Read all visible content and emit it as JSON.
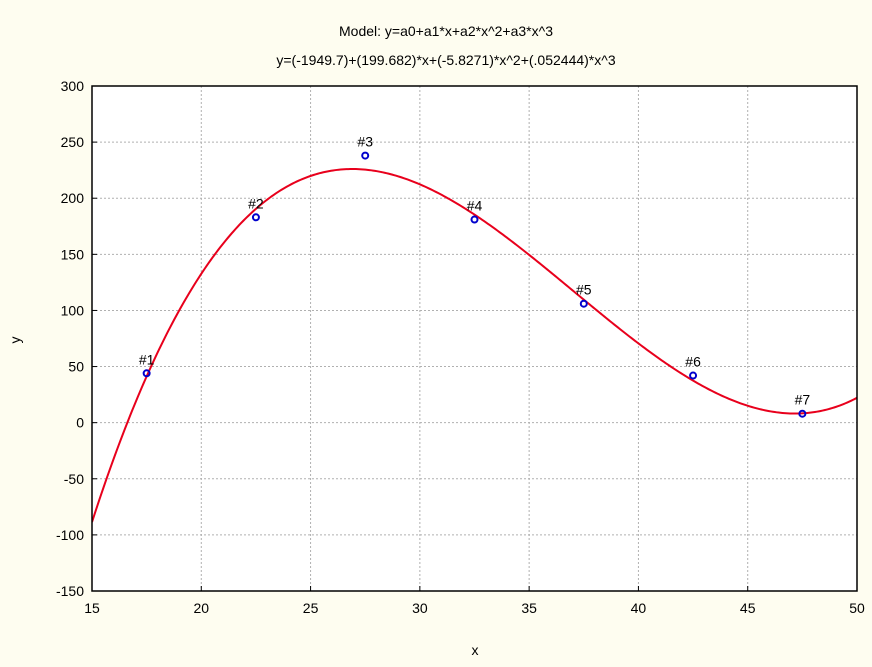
{
  "chart_data": {
    "type": "scatter",
    "title": "Model: y=a0+a1*x+a2*x^2+a3*x^3",
    "subtitle": "y=(-1949.7)+(199.682)*x+(-5.8271)*x^2+(.052444)*x^3",
    "xlabel": "x",
    "ylabel": "y",
    "xlim": [
      15,
      50
    ],
    "ylim": [
      -150,
      300
    ],
    "x_ticks": [
      15,
      20,
      25,
      30,
      35,
      40,
      45,
      50
    ],
    "y_ticks": [
      -150,
      -100,
      -50,
      0,
      50,
      100,
      150,
      200,
      250,
      300
    ],
    "grid": true,
    "points": [
      {
        "label": "#1",
        "x": 17.5,
        "y": 44
      },
      {
        "label": "#2",
        "x": 22.5,
        "y": 183
      },
      {
        "label": "#3",
        "x": 27.5,
        "y": 238
      },
      {
        "label": "#4",
        "x": 32.5,
        "y": 181
      },
      {
        "label": "#5",
        "x": 37.5,
        "y": 106
      },
      {
        "label": "#6",
        "x": 42.5,
        "y": 42
      },
      {
        "label": "#7",
        "x": 47.5,
        "y": 8
      }
    ],
    "fit": {
      "coefficients": [
        -1949.7,
        199.682,
        -5.8271,
        0.052444
      ]
    },
    "colors": {
      "background": "#fefdf0",
      "plot_area": "#ffffff",
      "fit_line": "#e8001c",
      "points": "#0000cc",
      "grid": "#b0b0b0"
    }
  }
}
